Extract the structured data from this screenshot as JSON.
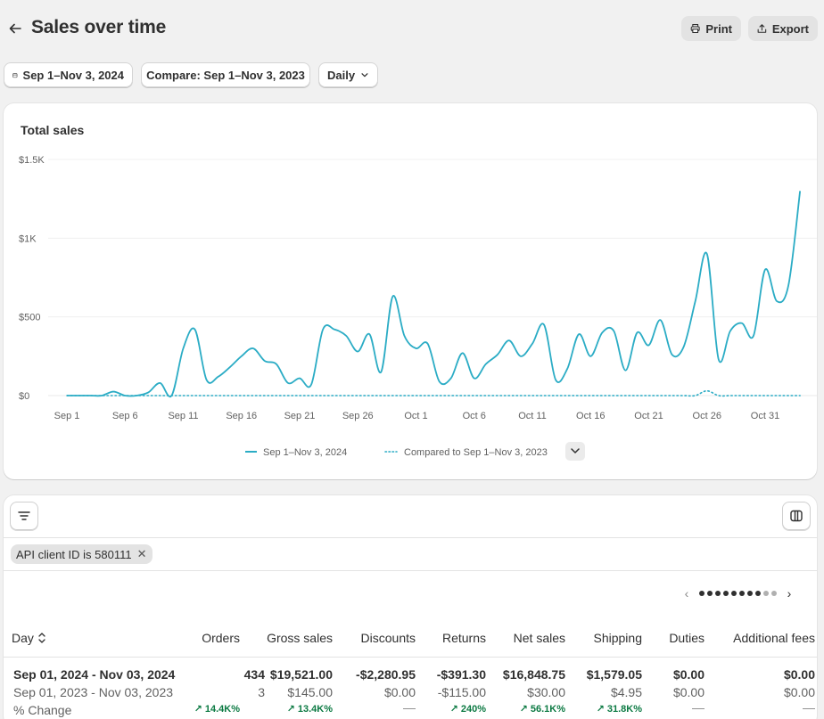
{
  "header": {
    "title": "Sales over time",
    "print_label": "Print",
    "export_label": "Export"
  },
  "filters": {
    "date_range": "Sep 1–Nov 3, 2024",
    "compare": "Compare: Sep 1–Nov 3, 2023",
    "granularity": "Daily"
  },
  "chart_data": {
    "type": "line",
    "title": "Total sales",
    "y_tick_labels": [
      "$0",
      "$500",
      "$1K",
      "$1.5K"
    ],
    "ylim": [
      0,
      1500
    ],
    "x_tick_labels": [
      "Sep 1",
      "Sep 6",
      "Sep 11",
      "Sep 16",
      "Sep 21",
      "Sep 26",
      "Oct 1",
      "Oct 6",
      "Oct 11",
      "Oct 16",
      "Oct 21",
      "Oct 26",
      "Oct 31"
    ],
    "x_tick_day_index": [
      0,
      5,
      10,
      15,
      20,
      25,
      30,
      35,
      40,
      45,
      50,
      55,
      60
    ],
    "grid": true,
    "legend_placement": "bottom-center",
    "series": [
      {
        "name": "Sep 1–Nov 3, 2024",
        "style": "solid",
        "color": "#2bacc5",
        "values": [
          0,
          0,
          0,
          0,
          25,
          0,
          0,
          20,
          80,
          0,
          300,
          420,
          100,
          120,
          180,
          250,
          300,
          220,
          200,
          80,
          110,
          70,
          420,
          420,
          380,
          280,
          390,
          150,
          630,
          380,
          300,
          330,
          90,
          110,
          270,
          110,
          200,
          260,
          350,
          250,
          330,
          450,
          100,
          170,
          390,
          250,
          400,
          410,
          160,
          400,
          320,
          480,
          260,
          310,
          600,
          900,
          230,
          410,
          460,
          380,
          800,
          600,
          700,
          1300
        ]
      },
      {
        "name": "Compared to Sep 1–Nov 3, 2023",
        "style": "dotted",
        "color": "#2bacc5",
        "values": [
          0,
          0,
          0,
          0,
          0,
          0,
          0,
          0,
          0,
          0,
          0,
          0,
          0,
          0,
          0,
          0,
          0,
          0,
          0,
          0,
          0,
          0,
          0,
          0,
          0,
          0,
          0,
          0,
          0,
          0,
          0,
          0,
          0,
          0,
          0,
          0,
          0,
          0,
          0,
          0,
          0,
          0,
          0,
          0,
          0,
          0,
          0,
          0,
          0,
          0,
          0,
          0,
          0,
          0,
          0,
          30,
          0,
          0,
          0,
          0,
          0,
          0,
          0,
          0
        ]
      }
    ]
  },
  "table": {
    "filter_chip": "API client ID is 580111",
    "columns": [
      "Day",
      "Orders",
      "Gross sales",
      "Discounts",
      "Returns",
      "Net sales",
      "Shipping",
      "Duties",
      "Additional fees"
    ],
    "rows": [
      [
        "Sep 01, 2024 - Nov 03, 2024",
        "434",
        "$19,521.00",
        "-$2,280.95",
        "-$391.30",
        "$16,848.75",
        "$1,579.05",
        "$0.00",
        "$0.00"
      ],
      [
        "Sep 01, 2023 - Nov 03, 2023",
        "3",
        "$145.00",
        "$0.00",
        "-$115.00",
        "$30.00",
        "$4.95",
        "$0.00",
        "$0.00"
      ]
    ],
    "change_label": "% Change",
    "changes": [
      "14.4K%",
      "13.4K%",
      "—",
      "240%",
      "56.1K%",
      "31.8K%",
      "—",
      "—"
    ],
    "page_dots_total": 10,
    "page_dots_active": 8
  },
  "colors": {
    "accent": "#2bacc5",
    "positive": "#0c7a43"
  }
}
